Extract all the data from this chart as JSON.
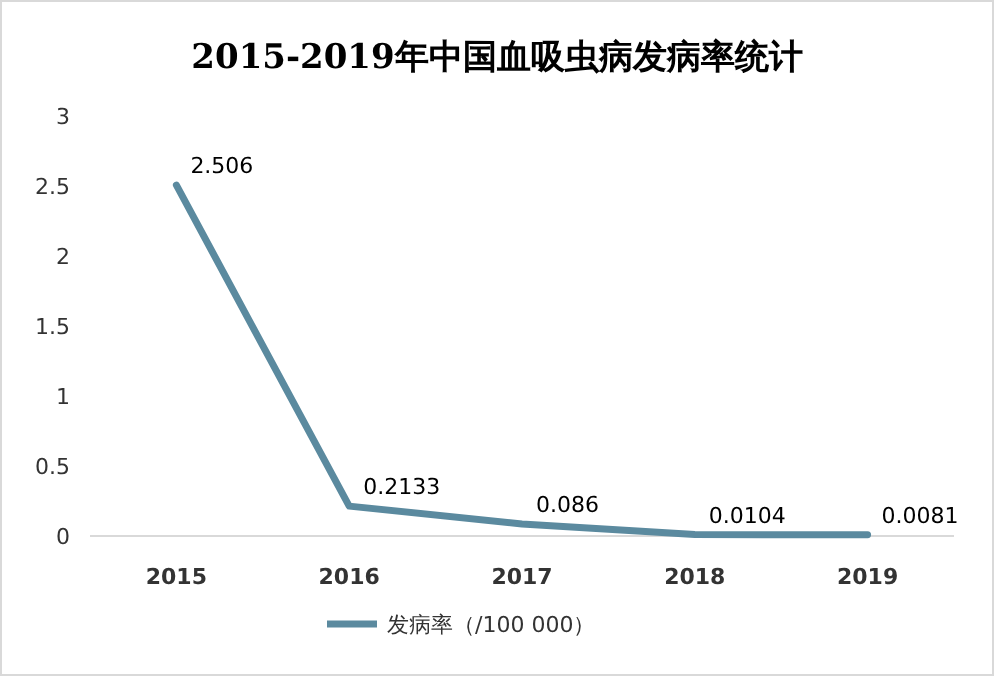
{
  "chart_data": {
    "type": "line",
    "title": "2015-2019年中国血吸虫病发病率统计",
    "categories": [
      "2015",
      "2016",
      "2017",
      "2018",
      "2019"
    ],
    "series": [
      {
        "name": "发病率（/100 000）",
        "color": "#5b8a9f",
        "values": [
          2.506,
          0.2133,
          0.086,
          0.0104,
          0.0081
        ]
      }
    ],
    "ylim": [
      0,
      3
    ],
    "yticks": [
      0,
      0.5,
      1,
      1.5,
      2,
      2.5,
      3
    ],
    "data_labels": true,
    "legend": "bottom",
    "grid": false,
    "marker": "none",
    "line_style": "solid"
  }
}
